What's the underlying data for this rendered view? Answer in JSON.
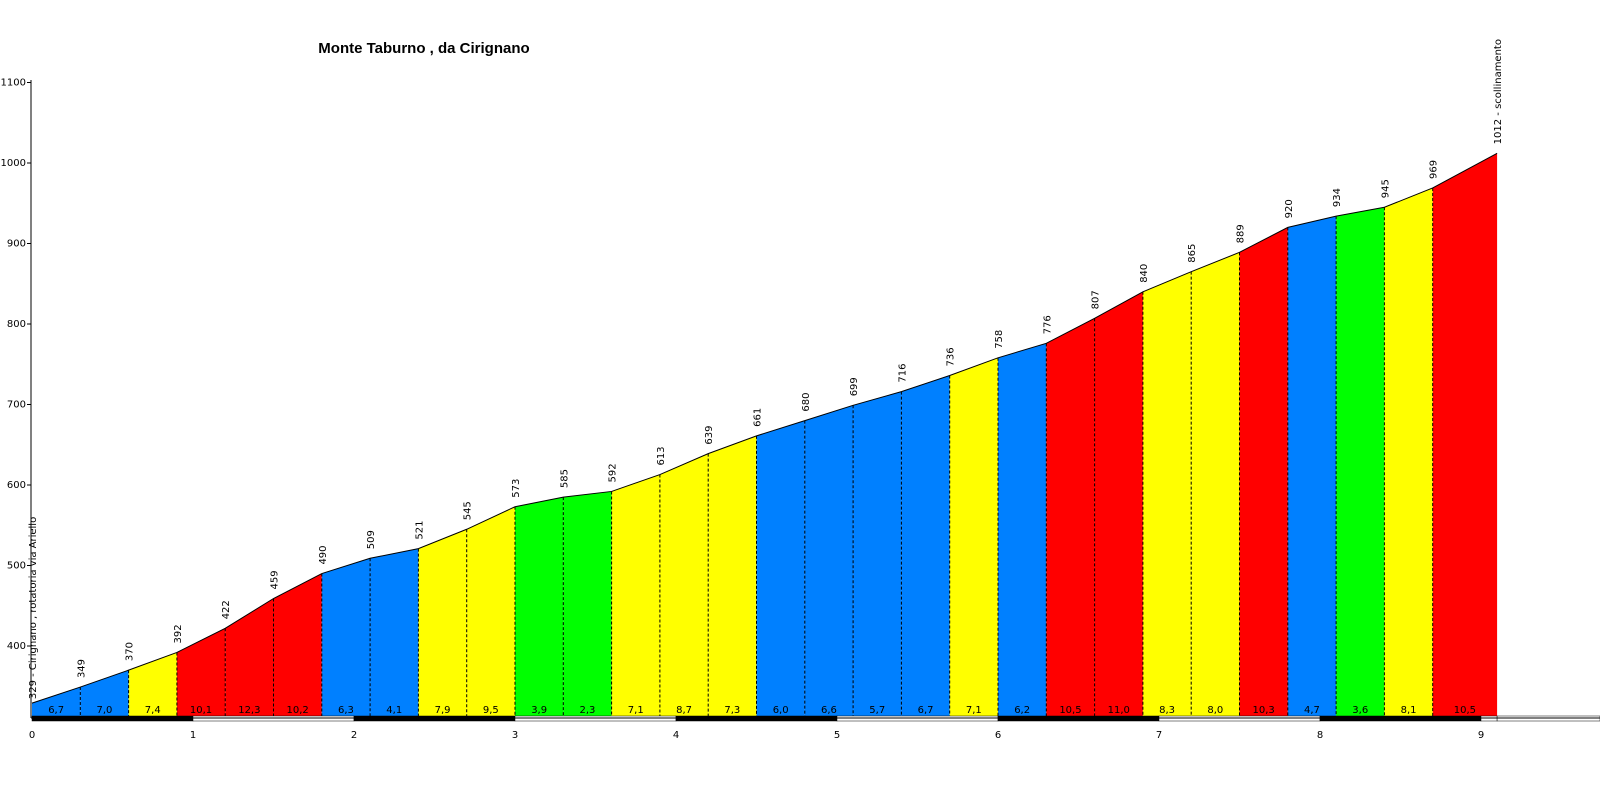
{
  "chart_data": {
    "type": "area",
    "title": "Monte Taburno , da Cirignano",
    "xlabel": "",
    "ylabel": "",
    "xlim": [
      0,
      9.6
    ],
    "ylim": [
      310,
      1100
    ],
    "y_ticks": [
      "400",
      "500",
      "600",
      "700",
      "800",
      "900",
      "1000",
      "1100"
    ],
    "x_ticks": [
      "0",
      "1",
      "2",
      "3",
      "4",
      "5",
      "6",
      "7",
      "8",
      "9"
    ],
    "grid": false,
    "legend": "none",
    "colors": {
      "blue": "#0080ff",
      "yellow": "#ffff00",
      "red": "#ff0000",
      "green": "#00ff00"
    },
    "points": [
      {
        "x": 0.0,
        "y": 329,
        "label": "329 - Cirignano , rotatoria via Ariello"
      },
      {
        "x": 0.3,
        "y": 349,
        "label": "349"
      },
      {
        "x": 0.6,
        "y": 370,
        "label": "370"
      },
      {
        "x": 0.9,
        "y": 392,
        "label": "392"
      },
      {
        "x": 1.2,
        "y": 422,
        "label": "422"
      },
      {
        "x": 1.5,
        "y": 459,
        "label": "459"
      },
      {
        "x": 1.8,
        "y": 490,
        "label": "490"
      },
      {
        "x": 2.1,
        "y": 509,
        "label": "509"
      },
      {
        "x": 2.4,
        "y": 521,
        "label": "521"
      },
      {
        "x": 2.7,
        "y": 545,
        "label": "545"
      },
      {
        "x": 3.0,
        "y": 573,
        "label": "573"
      },
      {
        "x": 3.3,
        "y": 585,
        "label": "585"
      },
      {
        "x": 3.6,
        "y": 592,
        "label": "592"
      },
      {
        "x": 3.9,
        "y": 613,
        "label": "613"
      },
      {
        "x": 4.2,
        "y": 639,
        "label": "639"
      },
      {
        "x": 4.5,
        "y": 661,
        "label": "661"
      },
      {
        "x": 4.8,
        "y": 680,
        "label": "680"
      },
      {
        "x": 5.1,
        "y": 699,
        "label": "699"
      },
      {
        "x": 5.4,
        "y": 716,
        "label": "716"
      },
      {
        "x": 5.7,
        "y": 736,
        "label": "736"
      },
      {
        "x": 6.0,
        "y": 758,
        "label": "758"
      },
      {
        "x": 6.3,
        "y": 776,
        "label": "776"
      },
      {
        "x": 6.6,
        "y": 807,
        "label": "807"
      },
      {
        "x": 6.9,
        "y": 840,
        "label": "840"
      },
      {
        "x": 7.2,
        "y": 865,
        "label": "865"
      },
      {
        "x": 7.5,
        "y": 889,
        "label": "889"
      },
      {
        "x": 7.8,
        "y": 920,
        "label": "920"
      },
      {
        "x": 8.1,
        "y": 934,
        "label": "934"
      },
      {
        "x": 8.4,
        "y": 945,
        "label": "945"
      },
      {
        "x": 8.7,
        "y": 969,
        "label": "969"
      },
      {
        "x": 9.1,
        "y": 1012,
        "label": "1012 - scollinamento"
      }
    ],
    "segments": [
      {
        "gradient": "6,7",
        "color": "blue"
      },
      {
        "gradient": "7,0",
        "color": "blue"
      },
      {
        "gradient": "7,4",
        "color": "yellow"
      },
      {
        "gradient": "10,1",
        "color": "red"
      },
      {
        "gradient": "12,3",
        "color": "red"
      },
      {
        "gradient": "10,2",
        "color": "red"
      },
      {
        "gradient": "6,3",
        "color": "blue"
      },
      {
        "gradient": "4,1",
        "color": "blue"
      },
      {
        "gradient": "7,9",
        "color": "yellow"
      },
      {
        "gradient": "9,5",
        "color": "yellow"
      },
      {
        "gradient": "3,9",
        "color": "green"
      },
      {
        "gradient": "2,3",
        "color": "green"
      },
      {
        "gradient": "7,1",
        "color": "yellow"
      },
      {
        "gradient": "8,7",
        "color": "yellow"
      },
      {
        "gradient": "7,3",
        "color": "yellow"
      },
      {
        "gradient": "6,0",
        "color": "blue"
      },
      {
        "gradient": "6,6",
        "color": "blue"
      },
      {
        "gradient": "5,7",
        "color": "blue"
      },
      {
        "gradient": "6,7",
        "color": "blue"
      },
      {
        "gradient": "7,1",
        "color": "yellow"
      },
      {
        "gradient": "6,2",
        "color": "blue"
      },
      {
        "gradient": "10,5",
        "color": "red"
      },
      {
        "gradient": "11,0",
        "color": "red"
      },
      {
        "gradient": "8,3",
        "color": "yellow"
      },
      {
        "gradient": "8,0",
        "color": "yellow"
      },
      {
        "gradient": "10,3",
        "color": "red"
      },
      {
        "gradient": "4,7",
        "color": "blue"
      },
      {
        "gradient": "3,6",
        "color": "green"
      },
      {
        "gradient": "8,1",
        "color": "yellow"
      },
      {
        "gradient": "10,5",
        "color": "red"
      }
    ]
  }
}
